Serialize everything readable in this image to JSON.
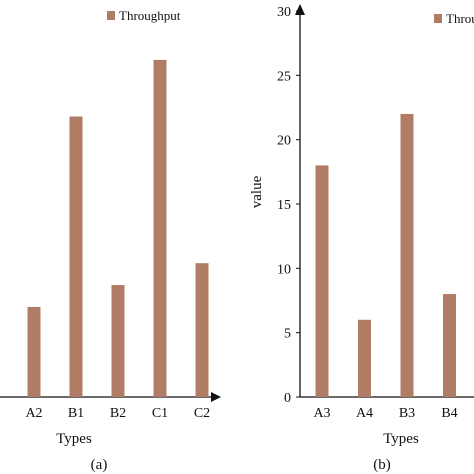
{
  "bar_color": "#b07c66",
  "axis_color": "#111111",
  "chart_data": [
    {
      "type": "bar",
      "panel_label": "(a)",
      "xlabel": "Types",
      "ylabel": "",
      "legend": [
        "Throughput"
      ],
      "legend_position": "top-right",
      "categories": [
        "A2",
        "B1",
        "B2",
        "C1",
        "C2"
      ],
      "series": [
        {
          "name": "Throughput",
          "values": [
            7.0,
            21.8,
            8.7,
            26.2,
            10.4
          ]
        }
      ],
      "ylim": [
        0,
        30
      ],
      "grid": false
    },
    {
      "type": "bar",
      "panel_label": "(b)",
      "xlabel": "Types",
      "ylabel": "value",
      "legend": [
        "Throughput"
      ],
      "legend_position": "top-right",
      "categories": [
        "A3",
        "A4",
        "B3",
        "B4"
      ],
      "series": [
        {
          "name": "Throughput",
          "values": [
            18,
            6,
            22,
            8
          ]
        }
      ],
      "ylim": [
        0,
        30
      ],
      "yticks": [
        "0",
        "5",
        "10",
        "15",
        "20",
        "25",
        "30"
      ],
      "grid": false
    }
  ]
}
